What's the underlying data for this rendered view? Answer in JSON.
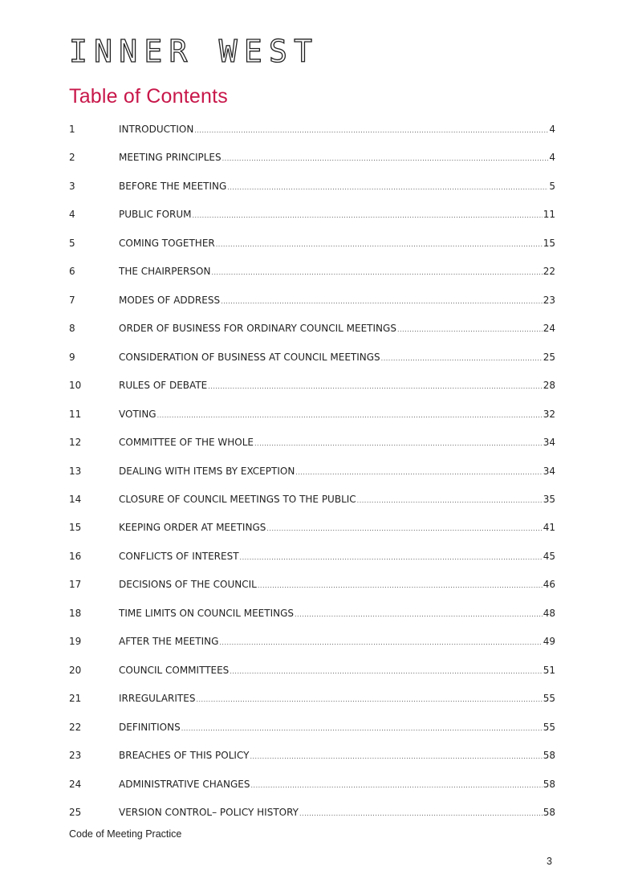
{
  "logo": {
    "text": "INNER WEST",
    "color": "#222222"
  },
  "title": "Table of Contents",
  "title_color": "#c8174a",
  "toc": [
    {
      "num": "1",
      "label": "INTRODUCTION",
      "page": "4"
    },
    {
      "num": "2",
      "label": "MEETING PRINCIPLES",
      "page": "4"
    },
    {
      "num": "3",
      "label": "BEFORE THE MEETING",
      "page": "5"
    },
    {
      "num": "4",
      "label": "PUBLIC FORUM",
      "page": "11"
    },
    {
      "num": "5",
      "label": "COMING TOGETHER",
      "page": "15"
    },
    {
      "num": "6",
      "label": "THE CHAIRPERSON",
      "page": "22"
    },
    {
      "num": "7",
      "label": "MODES OF ADDRESS",
      "page": "23"
    },
    {
      "num": "8",
      "label": "ORDER OF BUSINESS FOR ORDINARY COUNCIL MEETINGS",
      "page": "24"
    },
    {
      "num": "9",
      "label": "CONSIDERATION OF BUSINESS AT COUNCIL MEETINGS",
      "page": "25"
    },
    {
      "num": "10",
      "label": "RULES OF DEBATE",
      "page": "28"
    },
    {
      "num": "11",
      "label": "VOTING",
      "page": "32"
    },
    {
      "num": "12",
      "label": "COMMITTEE OF THE WHOLE",
      "page": "34"
    },
    {
      "num": "13",
      "label": "DEALING WITH ITEMS BY EXCEPTION",
      "page": "34"
    },
    {
      "num": "14",
      "label": "CLOSURE OF COUNCIL MEETINGS TO THE PUBLIC",
      "page": "35"
    },
    {
      "num": "15",
      "label": "KEEPING ORDER AT MEETINGS",
      "page": "41"
    },
    {
      "num": "16",
      "label": "CONFLICTS OF INTEREST",
      "page": "45"
    },
    {
      "num": "17",
      "label": "DECISIONS OF THE COUNCIL",
      "page": "46"
    },
    {
      "num": "18",
      "label": "TIME LIMITS ON COUNCIL MEETINGS",
      "page": "48"
    },
    {
      "num": "19",
      "label": "AFTER THE MEETING",
      "page": "49"
    },
    {
      "num": "20",
      "label": "COUNCIL COMMITTEES",
      "page": "51"
    },
    {
      "num": "21",
      "label": "IRREGULARITES",
      "page": "55"
    },
    {
      "num": "22",
      "label": "DEFINITIONS",
      "page": "55"
    },
    {
      "num": "23",
      "label": "BREACHES OF THIS POLICY",
      "page": "58"
    },
    {
      "num": "24",
      "label": "ADMINISTRATIVE CHANGES",
      "page": "58"
    },
    {
      "num": "25",
      "label": "VERSION CONTROL– POLICY HISTORY",
      "page": "58"
    }
  ],
  "footer": "Code of Meeting Practice",
  "page_number": "3"
}
